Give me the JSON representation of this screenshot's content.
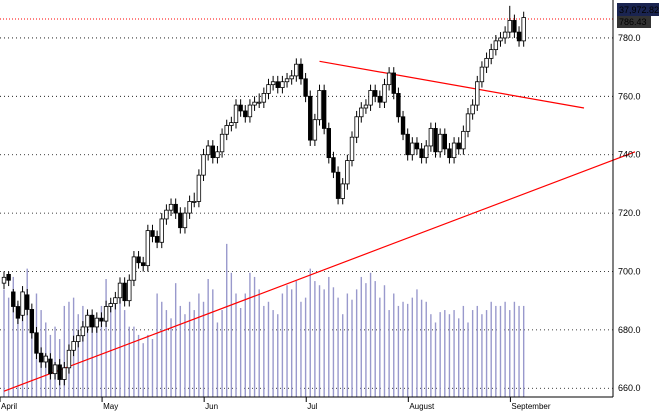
{
  "chart_data": {
    "type": "candlestick",
    "title": "",
    "xlabel": "",
    "ylabel": "",
    "ylim": [
      657,
      793
    ],
    "y_ticks": [
      "660.0",
      "680.0",
      "700.0",
      "720.0",
      "740.0",
      "760.0",
      "780.0"
    ],
    "x_month_labels": [
      "April",
      "May",
      "Jun",
      "Jul",
      "August",
      "September"
    ],
    "month_start_index": [
      0,
      22,
      44,
      66,
      88,
      110
    ],
    "grid": true,
    "colors": {
      "grid": "#000000",
      "volume": "#9999cc",
      "trendline": "#ff0000",
      "reference_line": "#ff0000",
      "candle_up": "#ffffff",
      "candle_down": "#000000",
      "badge_dark_bg": "#1a2450",
      "badge_text": "#ffffff"
    },
    "top_badge": "37,972.82",
    "last_price_badge": "786.43",
    "reference_level": 786.5,
    "trendlines": [
      {
        "from": [
          0,
          659
        ],
        "to": [
          136,
          741
        ]
      },
      {
        "from": [
          68,
          772
        ],
        "to": [
          125,
          756
        ]
      }
    ],
    "series": [
      {
        "kind": "ohlc",
        "close": [
          698,
          697,
          688,
          684,
          693,
          687,
          679,
          672,
          669,
          671,
          665,
          668,
          663,
          667,
          673,
          676,
          678,
          681,
          685,
          681,
          684,
          683,
          688,
          689,
          691,
          696,
          690,
          697,
          705,
          703,
          702,
          714,
          712,
          710,
          718,
          721,
          723,
          720,
          715,
          720,
          724,
          724,
          733,
          740,
          743,
          739,
          741,
          747,
          750,
          751,
          757,
          755,
          753,
          757,
          758,
          758,
          761,
          764,
          765,
          763,
          765,
          766,
          767,
          771,
          766,
          760,
          745,
          752,
          762,
          749,
          739,
          734,
          725,
          730,
          738,
          746,
          753,
          756,
          757,
          762,
          760,
          758,
          764,
          768,
          761,
          753,
          747,
          740,
          744,
          742,
          739,
          743,
          749,
          741,
          747,
          742,
          739,
          744,
          742,
          748,
          754,
          757,
          765,
          770,
          773,
          776,
          779,
          780,
          782,
          786,
          782,
          779,
          787
        ],
        "open": [
          696,
          699,
          693,
          688,
          685,
          692,
          687,
          679,
          672,
          669,
          670,
          665,
          668,
          663,
          667,
          673,
          676,
          678,
          681,
          685,
          681,
          684,
          683,
          688,
          689,
          691,
          696,
          690,
          697,
          705,
          703,
          702,
          714,
          712,
          710,
          718,
          721,
          723,
          720,
          715,
          720,
          724,
          724,
          733,
          740,
          743,
          739,
          741,
          747,
          750,
          751,
          757,
          755,
          753,
          757,
          758,
          758,
          761,
          764,
          765,
          763,
          765,
          766,
          767,
          771,
          766,
          760,
          745,
          752,
          762,
          749,
          739,
          734,
          725,
          730,
          738,
          746,
          753,
          756,
          757,
          762,
          760,
          758,
          764,
          768,
          761,
          753,
          747,
          740,
          744,
          742,
          739,
          743,
          749,
          741,
          747,
          742,
          739,
          744,
          742,
          748,
          754,
          757,
          765,
          770,
          773,
          776,
          779,
          780,
          782,
          786,
          782,
          779
        ],
        "high": [
          700,
          700,
          694,
          690,
          695,
          694,
          689,
          681,
          674,
          672,
          672,
          669,
          670,
          669,
          675,
          678,
          680,
          683,
          687,
          687,
          686,
          686,
          690,
          691,
          693,
          698,
          698,
          699,
          707,
          707,
          705,
          716,
          716,
          714,
          720,
          723,
          725,
          725,
          722,
          722,
          726,
          727,
          735,
          742,
          745,
          745,
          743,
          749,
          752,
          753,
          759,
          759,
          757,
          759,
          760,
          761,
          763,
          766,
          767,
          767,
          767,
          768,
          769,
          773,
          773,
          768,
          762,
          754,
          764,
          764,
          751,
          741,
          736,
          732,
          740,
          748,
          755,
          758,
          759,
          764,
          764,
          762,
          766,
          770,
          770,
          763,
          755,
          749,
          746,
          746,
          744,
          745,
          751,
          751,
          749,
          749,
          744,
          746,
          746,
          750,
          756,
          759,
          767,
          772,
          775,
          778,
          781,
          782,
          784,
          791,
          788,
          784,
          789
        ],
        "low": [
          694,
          695,
          686,
          682,
          683,
          685,
          677,
          670,
          667,
          667,
          663,
          663,
          661,
          661,
          665,
          671,
          674,
          676,
          679,
          679,
          679,
          681,
          681,
          686,
          687,
          689,
          688,
          688,
          695,
          701,
          700,
          700,
          710,
          708,
          708,
          716,
          719,
          718,
          713,
          713,
          718,
          722,
          722,
          731,
          738,
          737,
          737,
          739,
          745,
          748,
          749,
          753,
          751,
          751,
          755,
          756,
          756,
          759,
          762,
          761,
          761,
          763,
          764,
          765,
          764,
          758,
          743,
          743,
          750,
          747,
          737,
          732,
          723,
          723,
          728,
          736,
          744,
          751,
          754,
          755,
          758,
          756,
          756,
          762,
          759,
          751,
          745,
          738,
          738,
          740,
          737,
          737,
          741,
          739,
          739,
          740,
          737,
          737,
          740,
          740,
          746,
          752,
          755,
          763,
          768,
          771,
          774,
          777,
          778,
          780,
          780,
          777,
          777
        ]
      },
      {
        "kind": "volume",
        "ylim": [
          0,
          100
        ],
        "values": [
          52,
          48,
          58,
          45,
          40,
          62,
          38,
          50,
          42,
          36,
          30,
          34,
          28,
          44,
          46,
          48,
          40,
          44,
          41,
          40,
          38,
          44,
          57,
          46,
          48,
          48,
          42,
          34,
          34,
          30,
          26,
          30,
          28,
          50,
          46,
          42,
          38,
          55,
          44,
          40,
          46,
          42,
          50,
          46,
          57,
          52,
          36,
          42,
          74,
          60,
          50,
          43,
          50,
          60,
          58,
          52,
          44,
          46,
          42,
          40,
          50,
          54,
          52,
          56,
          46,
          48,
          62,
          56,
          54,
          52,
          58,
          53,
          48,
          40,
          50,
          47,
          52,
          58,
          55,
          60,
          56,
          48,
          54,
          42,
          50,
          44,
          46,
          45,
          48,
          52,
          47,
          46,
          40,
          36,
          41,
          42,
          40,
          42,
          38,
          44,
          36,
          42,
          44,
          40,
          42,
          46,
          44,
          44,
          46,
          42,
          46,
          44,
          44
        ]
      }
    ]
  }
}
